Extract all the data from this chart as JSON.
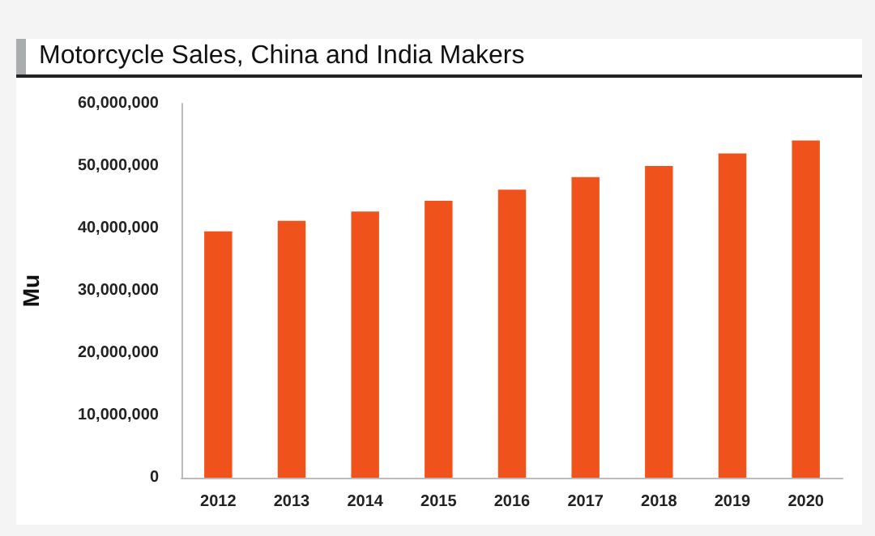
{
  "chart_data": {
    "type": "bar",
    "title": "Motorcycle Sales, China and India Makers",
    "ylabel": "Mu",
    "categories": [
      "2012",
      "2013",
      "2014",
      "2015",
      "2016",
      "2017",
      "2018",
      "2019",
      "2020"
    ],
    "series": [
      {
        "color": "#f0521c",
        "values": [
          39500000,
          41200000,
          42700000,
          44400000,
          46200000,
          48200000,
          50000000,
          52000000,
          54100000
        ]
      }
    ],
    "ylim": [
      0,
      60000000
    ],
    "yticks": [
      0,
      {
        "value": 10000000,
        "label": "10,000,000"
      },
      {
        "value": 20000000,
        "label": "20,000,000"
      },
      {
        "value": 30000000,
        "label": "30,000,000"
      },
      {
        "value": 40000000,
        "label": "40,000,000"
      },
      {
        "value": 50000000,
        "label": "50,000,000"
      },
      {
        "value": 60000000,
        "label": "60,000,000"
      }
    ],
    "grid": false
  }
}
